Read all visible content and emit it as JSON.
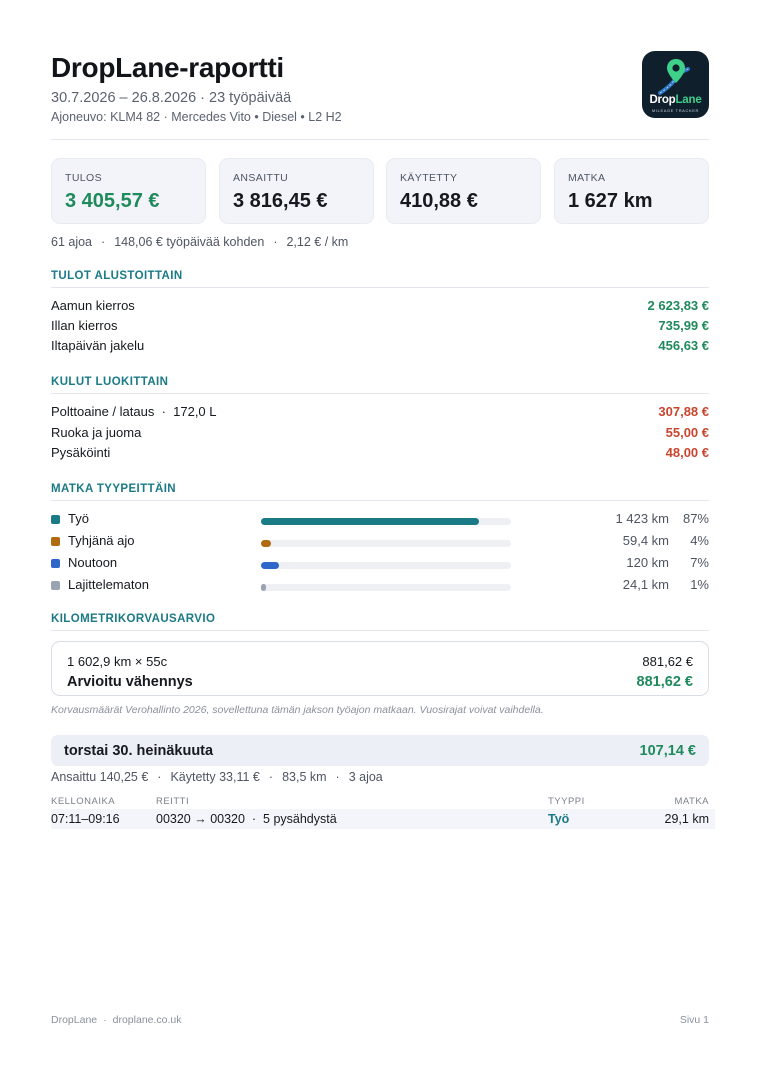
{
  "header": {
    "title": "DropLane-raportti",
    "period": "30.7.2026 – 26.8.2026 · 23 työpäivää",
    "vehicle": "Ajoneuvo: KLM4 82 · Mercedes Vito • Diesel • L2 H2",
    "logo": {
      "name_part1": "Drop",
      "name_part2": "Lane",
      "tagline": "MILEAGE TRACKER",
      "icon": "map-pin-road-icon",
      "bg_color": "#0f1f2c",
      "accent_color": "#3fd08a"
    }
  },
  "kpis": [
    {
      "label": "TULOS",
      "value": "3 405,57 €"
    },
    {
      "label": "ANSAITTU",
      "value": "3 816,45 €"
    },
    {
      "label": "KÄYTETTY",
      "value": "410,88 €"
    },
    {
      "label": "MATKA",
      "value": "1 627 km"
    }
  ],
  "summary": {
    "trips": "61 ajoa",
    "per_day": "148,06 € työpäivää kohden",
    "per_km": "2,12 € / km",
    "separator": "·"
  },
  "income": {
    "title": "TULOT ALUSTOITTAIN",
    "rows": [
      {
        "label": "Aamun kierros",
        "value": "2 623,83 €"
      },
      {
        "label": "Illan kierros",
        "value": "735,99 €"
      },
      {
        "label": "Iltapäivän jakelu",
        "value": "456,63 €"
      }
    ]
  },
  "expenses": {
    "title": "KULUT LUOKITTAIN",
    "rows": [
      {
        "label": "Polttoaine / lataus  ·  172,0 L",
        "value": "307,88 €"
      },
      {
        "label": "Ruoka ja juoma",
        "value": "55,00 €"
      },
      {
        "label": "Pysäköinti",
        "value": "48,00 €"
      }
    ]
  },
  "distance": {
    "title": "MATKA TYYPEITTÄIN",
    "rows": [
      {
        "label": "Työ",
        "km": "1 423 km",
        "pct": "87%",
        "share": 0.87,
        "color": "#1a7a86"
      },
      {
        "label": "Tyhjänä ajo",
        "km": "59,4 km",
        "pct": "4%",
        "share": 0.04,
        "color": "#b06a10"
      },
      {
        "label": "Noutoon",
        "km": "120 km",
        "pct": "7%",
        "share": 0.07,
        "color": "#2f66c9"
      },
      {
        "label": "Lajittelematon",
        "km": "24,1 km",
        "pct": "1%",
        "share": 0.015,
        "color": "#9aa3b2"
      }
    ]
  },
  "mileage": {
    "title": "KILOMETRIKORVAUSARVIO",
    "calc_label": "1 602,9 km × 55c",
    "calc_value": "881,62 €",
    "total_label": "Arvioitu vähennys",
    "total_value": "881,62 €",
    "note": "Korvausmäärät Verohallinto 2026, sovellettuna tämän jakson työajon matkaan. Vuosirajat voivat vaihdella."
  },
  "day": {
    "title": "torstai 30. heinäkuuta",
    "total": "107,14 €",
    "earned": "Ansaittu 140,25 €",
    "spent": "Käytetty 33,11 €",
    "distance": "83,5 km",
    "trips": "3 ajoa",
    "columns": {
      "time": "KELLONAIKA",
      "route": "REITTI",
      "type": "TYYPPI",
      "distance": "MATKA"
    },
    "trips_list": [
      {
        "time": "07:11–09:16",
        "route": "00320 → 00320  ·  5 pysähdystä",
        "type": "Työ",
        "distance": "29,1 km"
      }
    ]
  },
  "footer": {
    "brand": "DropLane",
    "site": "droplane.co.uk",
    "page": "Sivu 1"
  }
}
